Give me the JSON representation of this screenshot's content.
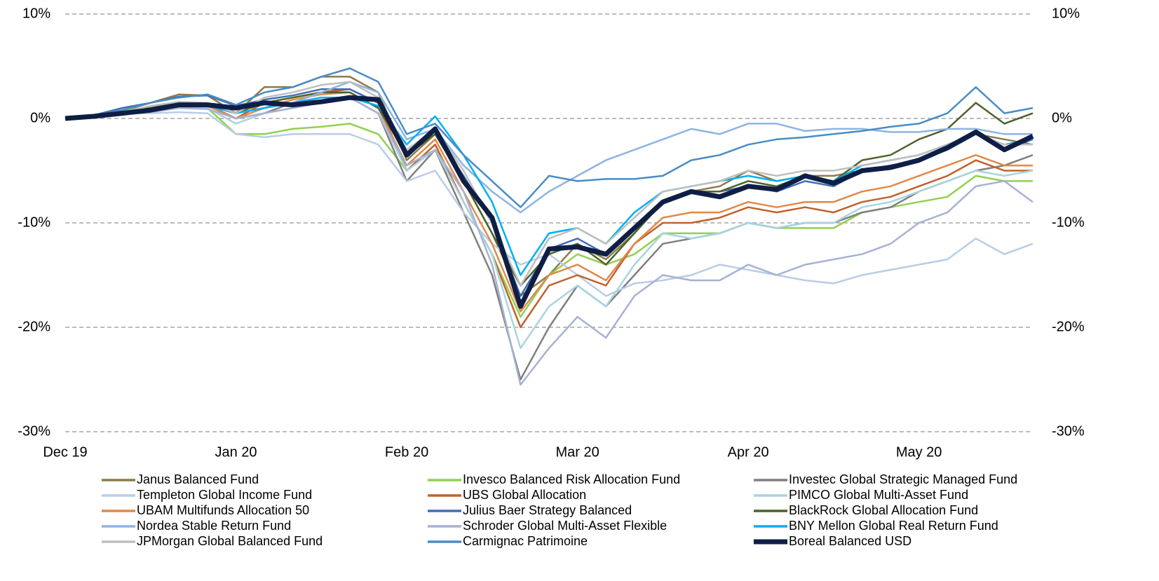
{
  "chart_data": {
    "type": "line",
    "categories": [
      "Dec 19",
      null,
      null,
      null,
      null,
      null,
      "Jan 20",
      null,
      null,
      null,
      null,
      null,
      "Feb 20",
      null,
      null,
      null,
      null,
      null,
      "Mar 20",
      null,
      null,
      null,
      null,
      null,
      "Apr 20",
      null,
      null,
      null,
      null,
      null,
      "May 20",
      null,
      null,
      null,
      null
    ],
    "ylim": [
      -30,
      10
    ],
    "yticks": [
      {
        "value": -30,
        "label": "-30%"
      },
      {
        "value": -20,
        "label": "-20%"
      },
      {
        "value": -10,
        "label": "-10%"
      },
      {
        "value": 0,
        "label": "0%"
      },
      {
        "value": 10,
        "label": "10%"
      }
    ],
    "grid": true,
    "legend": "bottom",
    "series": [
      {
        "name": "Janus Balanced Fund",
        "color": "#8c7b4a",
        "values": [
          0,
          0.3,
          0.7,
          1.5,
          2.3,
          2.2,
          0.5,
          3,
          3,
          4,
          4,
          2.5,
          -4,
          -1.5,
          -6,
          -11,
          -17,
          -15,
          -12,
          -13.5,
          -11,
          -8,
          -7,
          -6.5,
          -5,
          -6,
          -5.5,
          -5.5,
          -5,
          -4.5,
          -4,
          -3,
          -1.5,
          -2,
          -2.5
        ]
      },
      {
        "name": "Invesco Balanced Risk Allocation Fund",
        "color": "#92d050",
        "values": [
          0,
          0.2,
          0.8,
          1,
          1.2,
          1,
          -1.5,
          -1.5,
          -1,
          -0.8,
          -0.5,
          -1.5,
          -5,
          -2.5,
          -8,
          -13,
          -19,
          -15,
          -13,
          -14,
          -13,
          -11,
          -11,
          -11,
          -10,
          -10.5,
          -10.5,
          -10.5,
          -9,
          -8.5,
          -8,
          -7.5,
          -5.5,
          -6,
          -6
        ]
      },
      {
        "name": "Investec Global Strategic Managed Fund",
        "color": "#7f7f7f",
        "values": [
          0,
          0.2,
          0.5,
          0.8,
          1.3,
          1.2,
          0,
          0.5,
          1.5,
          2,
          2,
          0.5,
          -6,
          -3,
          -9,
          -15,
          -25,
          -20,
          -16,
          -18,
          -15,
          -12,
          -11.5,
          -11,
          -10,
          -10.5,
          -10,
          -10,
          -9,
          -8.5,
          -7,
          -6,
          -5,
          -4.5,
          -3.5
        ]
      },
      {
        "name": "Templeton Global Income Fund",
        "color": "#b9cde5",
        "values": [
          0,
          0.2,
          0.5,
          0.5,
          0.6,
          0.5,
          -1.5,
          -1.8,
          -1.5,
          -1.5,
          -1.5,
          -2.5,
          -6,
          -5,
          -9,
          -12,
          -14,
          -13,
          -15,
          -17,
          -15.8,
          -15.5,
          -15,
          -14,
          -14.5,
          -15,
          -15.5,
          -15.8,
          -15,
          -14.5,
          -14,
          -13.5,
          -11.5,
          -13,
          -12
        ]
      },
      {
        "name": "UBS Global Allocation",
        "color": "#c0622e",
        "values": [
          0,
          0.2,
          0.6,
          1,
          1.5,
          1.3,
          0,
          1.5,
          2,
          2.5,
          2.8,
          1.5,
          -5,
          -2.5,
          -8,
          -13,
          -20,
          -16,
          -15,
          -16,
          -12,
          -10,
          -10,
          -9.5,
          -8.5,
          -9,
          -8.5,
          -9,
          -8,
          -7.5,
          -6.5,
          -5.5,
          -4,
          -5,
          -5
        ]
      },
      {
        "name": "PIMCO Global Multi-Asset Fund",
        "color": "#a9d4e0",
        "values": [
          0,
          0.1,
          0.4,
          0.7,
          1,
          1,
          -0.5,
          0.5,
          1,
          1.5,
          2,
          0.5,
          -5,
          -3,
          -8,
          -13,
          -22,
          -18,
          -16,
          -18,
          -14,
          -11,
          -11.5,
          -11,
          -10,
          -10.5,
          -10,
          -10,
          -8.5,
          -8,
          -7,
          -6,
          -5,
          -5.5,
          -5
        ]
      },
      {
        "name": "UBAM Multifunds Allocation 50",
        "color": "#e0894a",
        "values": [
          0,
          0.2,
          0.5,
          0.9,
          1.4,
          1.2,
          0,
          1,
          1.8,
          2.3,
          2.5,
          1,
          -4.5,
          -2,
          -7,
          -12,
          -18.5,
          -15,
          -14,
          -15.5,
          -12,
          -9.5,
          -9,
          -9,
          -8,
          -8.5,
          -8,
          -8,
          -7,
          -6.5,
          -5.5,
          -4.5,
          -3.5,
          -4.5,
          -4.5
        ]
      },
      {
        "name": "Julius Baer Strategy Balanced",
        "color": "#3f6fb5",
        "values": [
          0,
          0.3,
          1,
          1.5,
          2.1,
          2.2,
          1.2,
          1.8,
          2.2,
          2.8,
          2.8,
          1.5,
          -3.5,
          -1.5,
          -5.5,
          -10,
          -17,
          -12.5,
          -11.5,
          -13,
          -10.5,
          -8,
          -7,
          -7,
          -6.5,
          -7,
          -6,
          -6.5,
          -5,
          -4.5,
          -4,
          -3,
          -1.5,
          -3,
          -2
        ]
      },
      {
        "name": "BlackRock Global Allocation Fund",
        "color": "#4f6228",
        "values": [
          0,
          0.2,
          0.6,
          1,
          1.5,
          1.3,
          0.5,
          1.5,
          2,
          2.5,
          2.5,
          1,
          -3.5,
          -1.5,
          -6,
          -11,
          -16,
          -13,
          -12,
          -14,
          -11,
          -8,
          -7,
          -7,
          -6,
          -6.5,
          -5.5,
          -6,
          -4,
          -3.5,
          -2,
          -1,
          1.5,
          -0.5,
          0.5
        ]
      },
      {
        "name": "Nordea Stable Return Fund",
        "color": "#8db4e2",
        "values": [
          0,
          0.2,
          0.5,
          0.8,
          1,
          1.2,
          0.5,
          1,
          1.5,
          2.5,
          3.5,
          2.5,
          -2,
          -1,
          -4.5,
          -7,
          -9,
          -7,
          -5.5,
          -4,
          -3,
          -2,
          -1,
          -1.5,
          -0.5,
          -0.5,
          -1.2,
          -1,
          -1,
          -1.3,
          -1.3,
          -1,
          -1,
          -1.5,
          -1.5
        ]
      },
      {
        "name": "Schroder Global Multi-Asset Flexible",
        "color": "#a6b2d3",
        "values": [
          0,
          0.2,
          0.4,
          0.6,
          1,
          0.9,
          0,
          0.5,
          1,
          1.5,
          2,
          0.5,
          -4.5,
          -3,
          -7,
          -14,
          -25.5,
          -22,
          -19,
          -21,
          -17,
          -15,
          -15.5,
          -15.5,
          -14,
          -15,
          -14,
          -13.5,
          -13,
          -12,
          -10,
          -9,
          -6.5,
          -6,
          -8
        ]
      },
      {
        "name": "BNY Mellon Global Real Return Fund",
        "color": "#00b0f0",
        "values": [
          0,
          0.2,
          0.5,
          0.9,
          1.3,
          1.2,
          0.5,
          1,
          1.5,
          2,
          2,
          1.2,
          -2.5,
          0.2,
          -3.5,
          -8,
          -15,
          -11,
          -10.5,
          -12,
          -9,
          -7,
          -6.5,
          -6,
          -5.5,
          -6,
          -5.5,
          -6,
          -4.5,
          -4,
          -3.5,
          -2.5,
          -1.5,
          -2.5,
          -2
        ]
      },
      {
        "name": "JPMorgan Global Balanced Fund",
        "color": "#bfbfbf",
        "values": [
          0,
          0.3,
          0.6,
          1.2,
          1.6,
          1.5,
          0.5,
          2,
          2.5,
          3.2,
          3.5,
          2,
          -3,
          -1,
          -5,
          -10,
          -16,
          -11.5,
          -10.5,
          -12,
          -9.5,
          -7,
          -6.5,
          -6,
          -5,
          -5.5,
          -5,
          -5,
          -4.5,
          -4,
          -3.5,
          -2.5,
          -1.5,
          -2.5,
          -2.5
        ]
      },
      {
        "name": "Carmignac Patrimoine",
        "color": "#4a8cc4",
        "values": [
          0,
          0.3,
          0.8,
          1.5,
          2,
          2.3,
          1.3,
          2.5,
          3,
          4,
          4.8,
          3.5,
          -1.5,
          -0.5,
          -3.5,
          -6,
          -8.5,
          -5.5,
          -6,
          -5.8,
          -5.8,
          -5.5,
          -4,
          -3.5,
          -2.5,
          -2,
          -1.8,
          -1.5,
          -1.2,
          -0.8,
          -0.5,
          0.5,
          3,
          0.5,
          1
        ]
      },
      {
        "name": "Boreal Balanced USD",
        "color": "#0f1e45",
        "values": [
          0,
          0.2,
          0.5,
          0.8,
          1.3,
          1.3,
          1,
          1.5,
          1.3,
          1.6,
          2,
          1.8,
          -3.5,
          -1,
          -6,
          -9.5,
          -18,
          -12.5,
          -12.3,
          -13,
          -10.5,
          -8,
          -7,
          -7.5,
          -6.5,
          -6.8,
          -5.5,
          -6.2,
          -5,
          -4.7,
          -4,
          -2.8,
          -1.3,
          -3,
          -1.7
        ]
      }
    ]
  }
}
